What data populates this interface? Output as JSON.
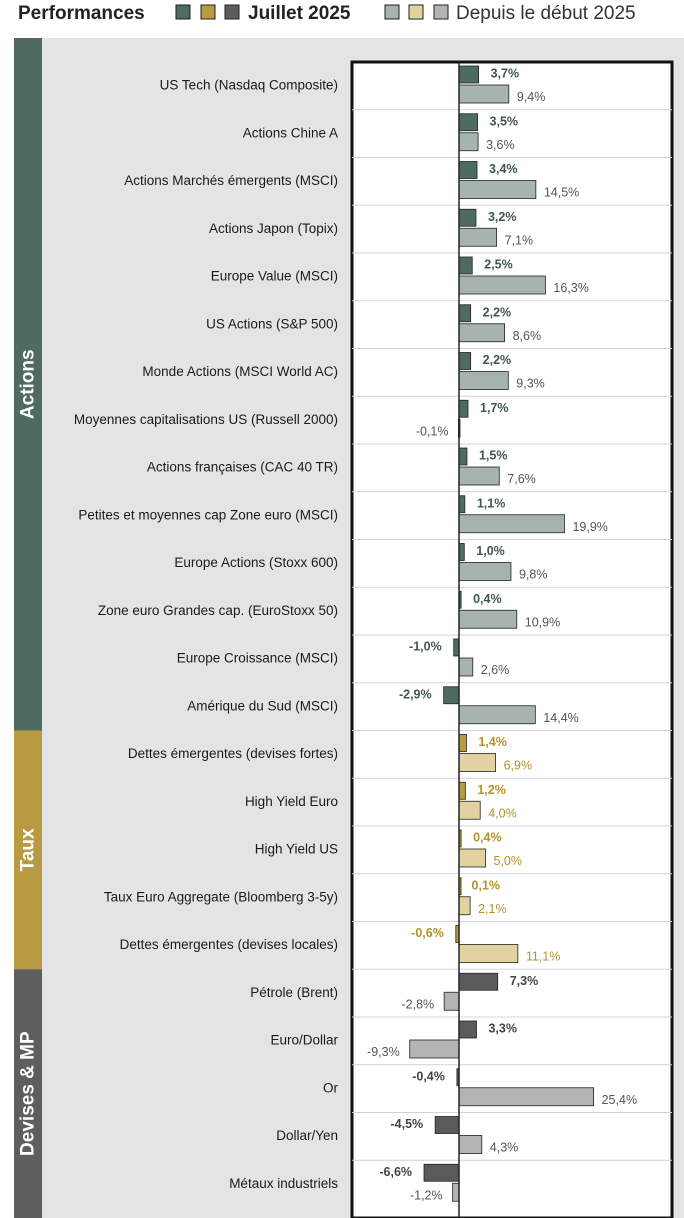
{
  "chart_data": {
    "type": "bar",
    "orientation": "horizontal",
    "legend": {
      "title": "Performances",
      "monthly_label": "Juillet 2025",
      "ytd_label": "Depuis le début 2025",
      "placement": "top"
    },
    "xlim": [
      -10,
      26
    ],
    "grid": false,
    "groups": [
      {
        "name": "Actions",
        "start": 0,
        "end": 14
      },
      {
        "name": "Taux",
        "start": 14,
        "end": 19
      },
      {
        "name": "Devises & MP",
        "start": 19,
        "end": 24
      }
    ],
    "categories": [
      "US Tech (Nasdaq Composite)",
      "Actions Chine A",
      "Actions Marchés émergents (MSCI)",
      "Actions Japon (Topix)",
      "Europe Value (MSCI)",
      "US Actions (S&P 500)",
      "Monde Actions (MSCI World AC)",
      "Moyennes capitalisations US (Russell 2000)",
      "Actions françaises (CAC 40 TR)",
      "Petites et moyennes cap Zone euro (MSCI)",
      "Europe Actions (Stoxx 600)",
      "Zone euro Grandes cap. (EuroStoxx 50)",
      "Europe Croissance (MSCI)",
      "Amérique du Sud (MSCI)",
      "Dettes émergentes (devises fortes)",
      "High Yield Euro",
      "High Yield US",
      "Taux Euro Aggregate (Bloomberg 3-5y)",
      "Dettes émergentes (devises locales)",
      "Pétrole (Brent)",
      "Euro/Dollar",
      "Or",
      "Dollar/Yen",
      "Métaux industriels"
    ],
    "series": [
      {
        "name": "Juillet 2025",
        "values": [
          3.7,
          3.5,
          3.4,
          3.2,
          2.5,
          2.2,
          2.2,
          1.7,
          1.5,
          1.1,
          1.0,
          0.4,
          -1.0,
          -2.9,
          1.4,
          1.2,
          0.4,
          0.1,
          -0.6,
          7.3,
          3.3,
          -0.4,
          -4.5,
          -6.6
        ],
        "labels": [
          "3,7%",
          "3,5%",
          "3,4%",
          "3,2%",
          "2,5%",
          "2,2%",
          "2,2%",
          "1,7%",
          "1,5%",
          "1,1%",
          "1,0%",
          "0,4%",
          "-1,0%",
          "-2,9%",
          "1,4%",
          "1,2%",
          "0,4%",
          "0,1%",
          "-0,6%",
          "7,3%",
          "3,3%",
          "-0,4%",
          "-4,5%",
          "-6,6%"
        ]
      },
      {
        "name": "Depuis le début 2025",
        "values": [
          9.4,
          3.6,
          14.5,
          7.1,
          16.3,
          8.6,
          9.3,
          -0.1,
          7.6,
          19.9,
          9.8,
          10.9,
          2.6,
          14.4,
          6.9,
          4.0,
          5.0,
          2.1,
          11.1,
          -2.8,
          -9.3,
          25.4,
          4.3,
          -1.2
        ],
        "labels": [
          "9,4%",
          "3,6%",
          "14,5%",
          "7,1%",
          "16,3%",
          "8,6%",
          "9,3%",
          "-0,1%",
          "7,6%",
          "19,9%",
          "9,8%",
          "10,9%",
          "2,6%",
          "14,4%",
          "6,9%",
          "4,0%",
          "5,0%",
          "2,1%",
          "11,1%",
          "-2,8%",
          "-9,3%",
          "25,4%",
          "4,3%",
          "-1,2%"
        ]
      }
    ],
    "colors": {
      "actions_dark": "#4e6b60",
      "actions_light": "#a7b3ad",
      "taux_dark": "#b89a42",
      "taux_light": "#e2d2a2",
      "devises_dark": "#5a5a5a",
      "devises_light": "#b4b4b4",
      "group_band_actions": "#4e6b60",
      "group_band_taux": "#b89a42",
      "group_band_devises": "#5e5e5e",
      "label_actions": "#3e5850",
      "label_taux": "#b2922e",
      "label_devises": "#444444",
      "panel_bg": "#e4e4e4"
    }
  }
}
